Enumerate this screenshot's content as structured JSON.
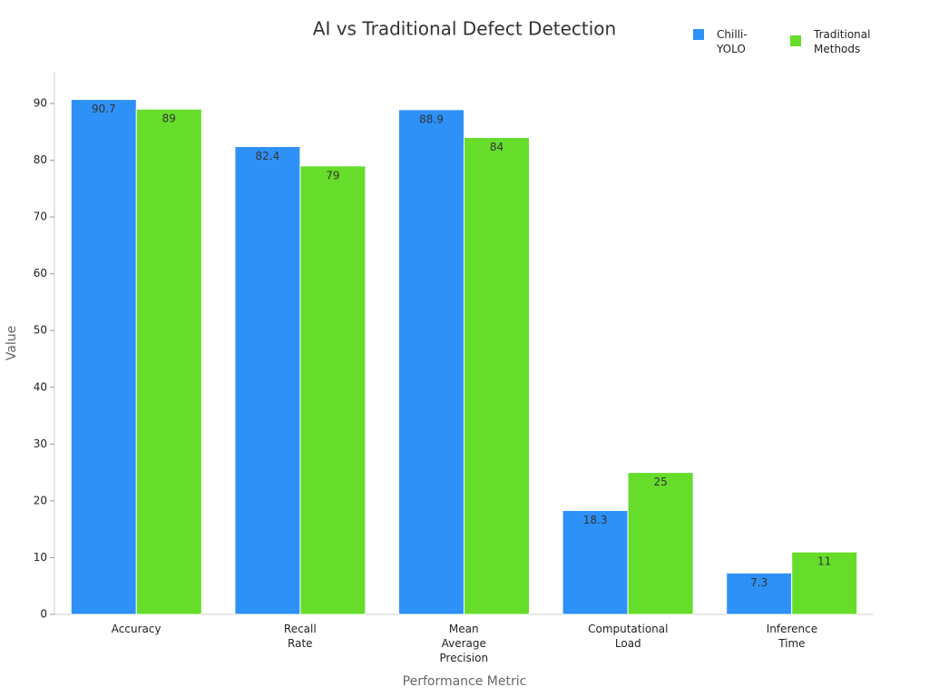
{
  "chart_data": {
    "type": "bar",
    "title": "AI vs Traditional Defect Detection",
    "x_label": "Performance Metric",
    "y_label": "Value",
    "categories": [
      "Accuracy",
      "Recall Rate",
      "Mean Average Precision",
      "Computational Load",
      "Inference Time"
    ],
    "series": [
      {
        "name": "Chilli-YOLO",
        "color": "#2e91f7",
        "values": [
          90.7,
          82.4,
          88.9,
          18.3,
          7.3
        ]
      },
      {
        "name": "Traditional Methods",
        "color": "#66dd2a",
        "values": [
          89,
          79,
          84,
          25,
          11
        ]
      }
    ],
    "ylim": [
      0,
      95
    ],
    "yticks": [
      0,
      10,
      20,
      30,
      40,
      50,
      60,
      70,
      80,
      90
    ],
    "legend": "top-right"
  }
}
